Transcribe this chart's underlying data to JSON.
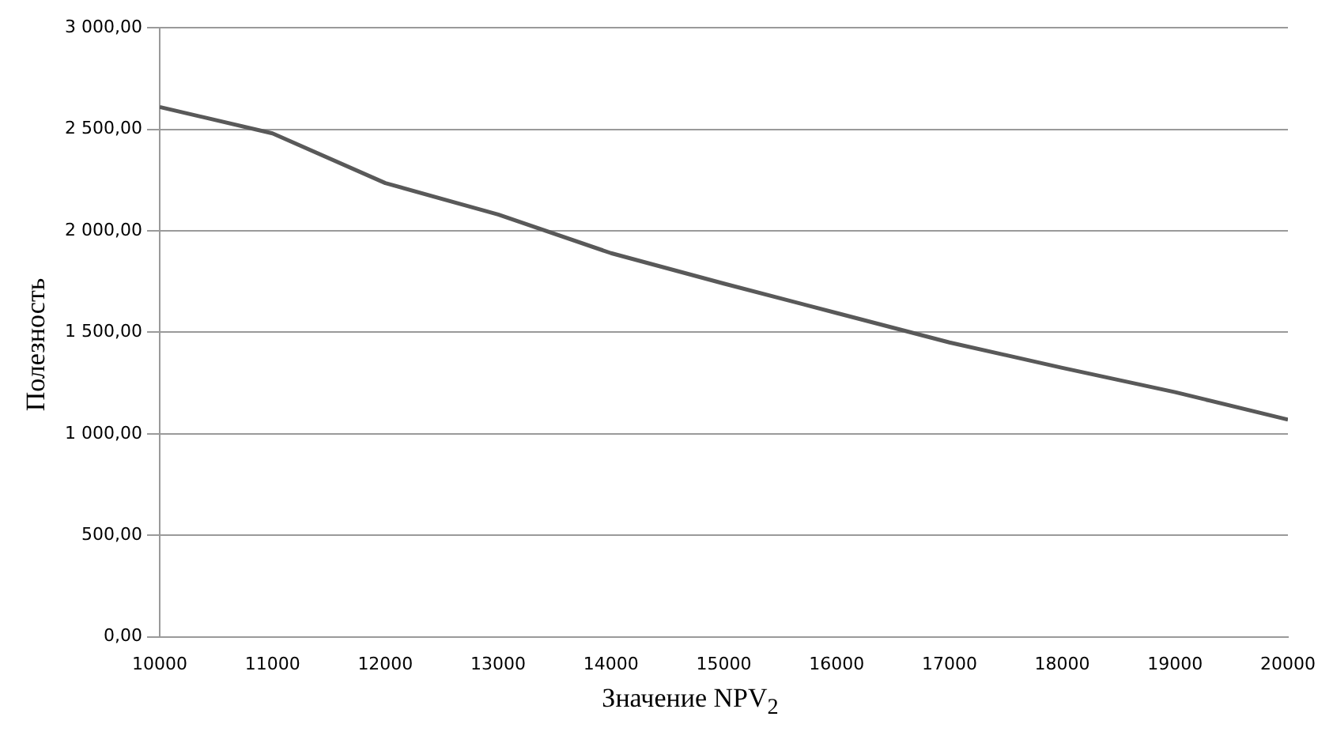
{
  "chart_data": {
    "type": "line",
    "xlabel": "Значение NPV$_{2}$",
    "ylabel": "Полезность",
    "x": [
      10000,
      11000,
      12000,
      13000,
      14000,
      15000,
      16000,
      17000,
      18000,
      19000,
      20000
    ],
    "series": [
      {
        "color": "#595959",
        "values": [
          2610,
          2480,
          2235,
          2080,
          1890,
          1740,
          1595,
          1450,
          1325,
          1205,
          1070
        ]
      }
    ],
    "xlim": [
      10000,
      20000
    ],
    "xticks": [
      10000,
      11000,
      12000,
      13000,
      14000,
      15000,
      16000,
      17000,
      18000,
      19000,
      20000
    ],
    "ylim": [
      0,
      3000
    ],
    "yticks": [
      {
        "value": 0,
        "label": "0,00"
      },
      {
        "value": 500,
        "label": "500,00"
      },
      {
        "value": 1000,
        "label": "1 000,00"
      },
      {
        "value": 1500,
        "label": "1 500,00"
      },
      {
        "value": 2000,
        "label": "2 000,00"
      },
      {
        "value": 2500,
        "label": "2 500,00"
      },
      {
        "value": 3000,
        "label": "3 000,00"
      }
    ],
    "grid": "y",
    "legend": false,
    "marker": "none",
    "line_style": "solid"
  }
}
